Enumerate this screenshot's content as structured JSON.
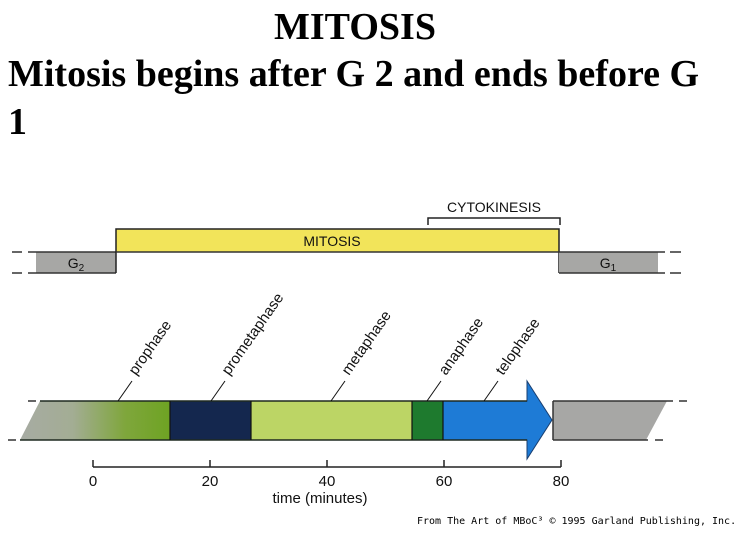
{
  "slide": {
    "title": "MITOSIS",
    "subtitle": "Mitosis begins after G 2  and ends before G 1"
  },
  "diagram": {
    "top_bar": {
      "g2_label": "G2",
      "mitosis_label": "MITOSIS",
      "cytokinesis_label": "CYTOKINESIS",
      "g1_label": "G1",
      "colors": {
        "mitosis": "#f2e45a",
        "interphase": "#a7a7a5"
      }
    },
    "phases": [
      {
        "name": "prophase",
        "start": 0,
        "end": 13,
        "color": "#6ea323"
      },
      {
        "name": "prometaphase",
        "start": 13,
        "end": 27,
        "color": "#14274e"
      },
      {
        "name": "metaphase",
        "start": 27,
        "end": 55,
        "color": "#bcd565"
      },
      {
        "name": "anaphase",
        "start": 55,
        "end": 60,
        "color": "#1e7a2e"
      },
      {
        "name": "telophase",
        "start": 60,
        "end": 80,
        "color": "#1e7bd6"
      }
    ],
    "axis": {
      "ticks": [
        "0",
        "20",
        "40",
        "60",
        "80"
      ],
      "label": "time (minutes)"
    },
    "credit": "From The Art of MBoC³ © 1995 Garland Publishing, Inc."
  }
}
